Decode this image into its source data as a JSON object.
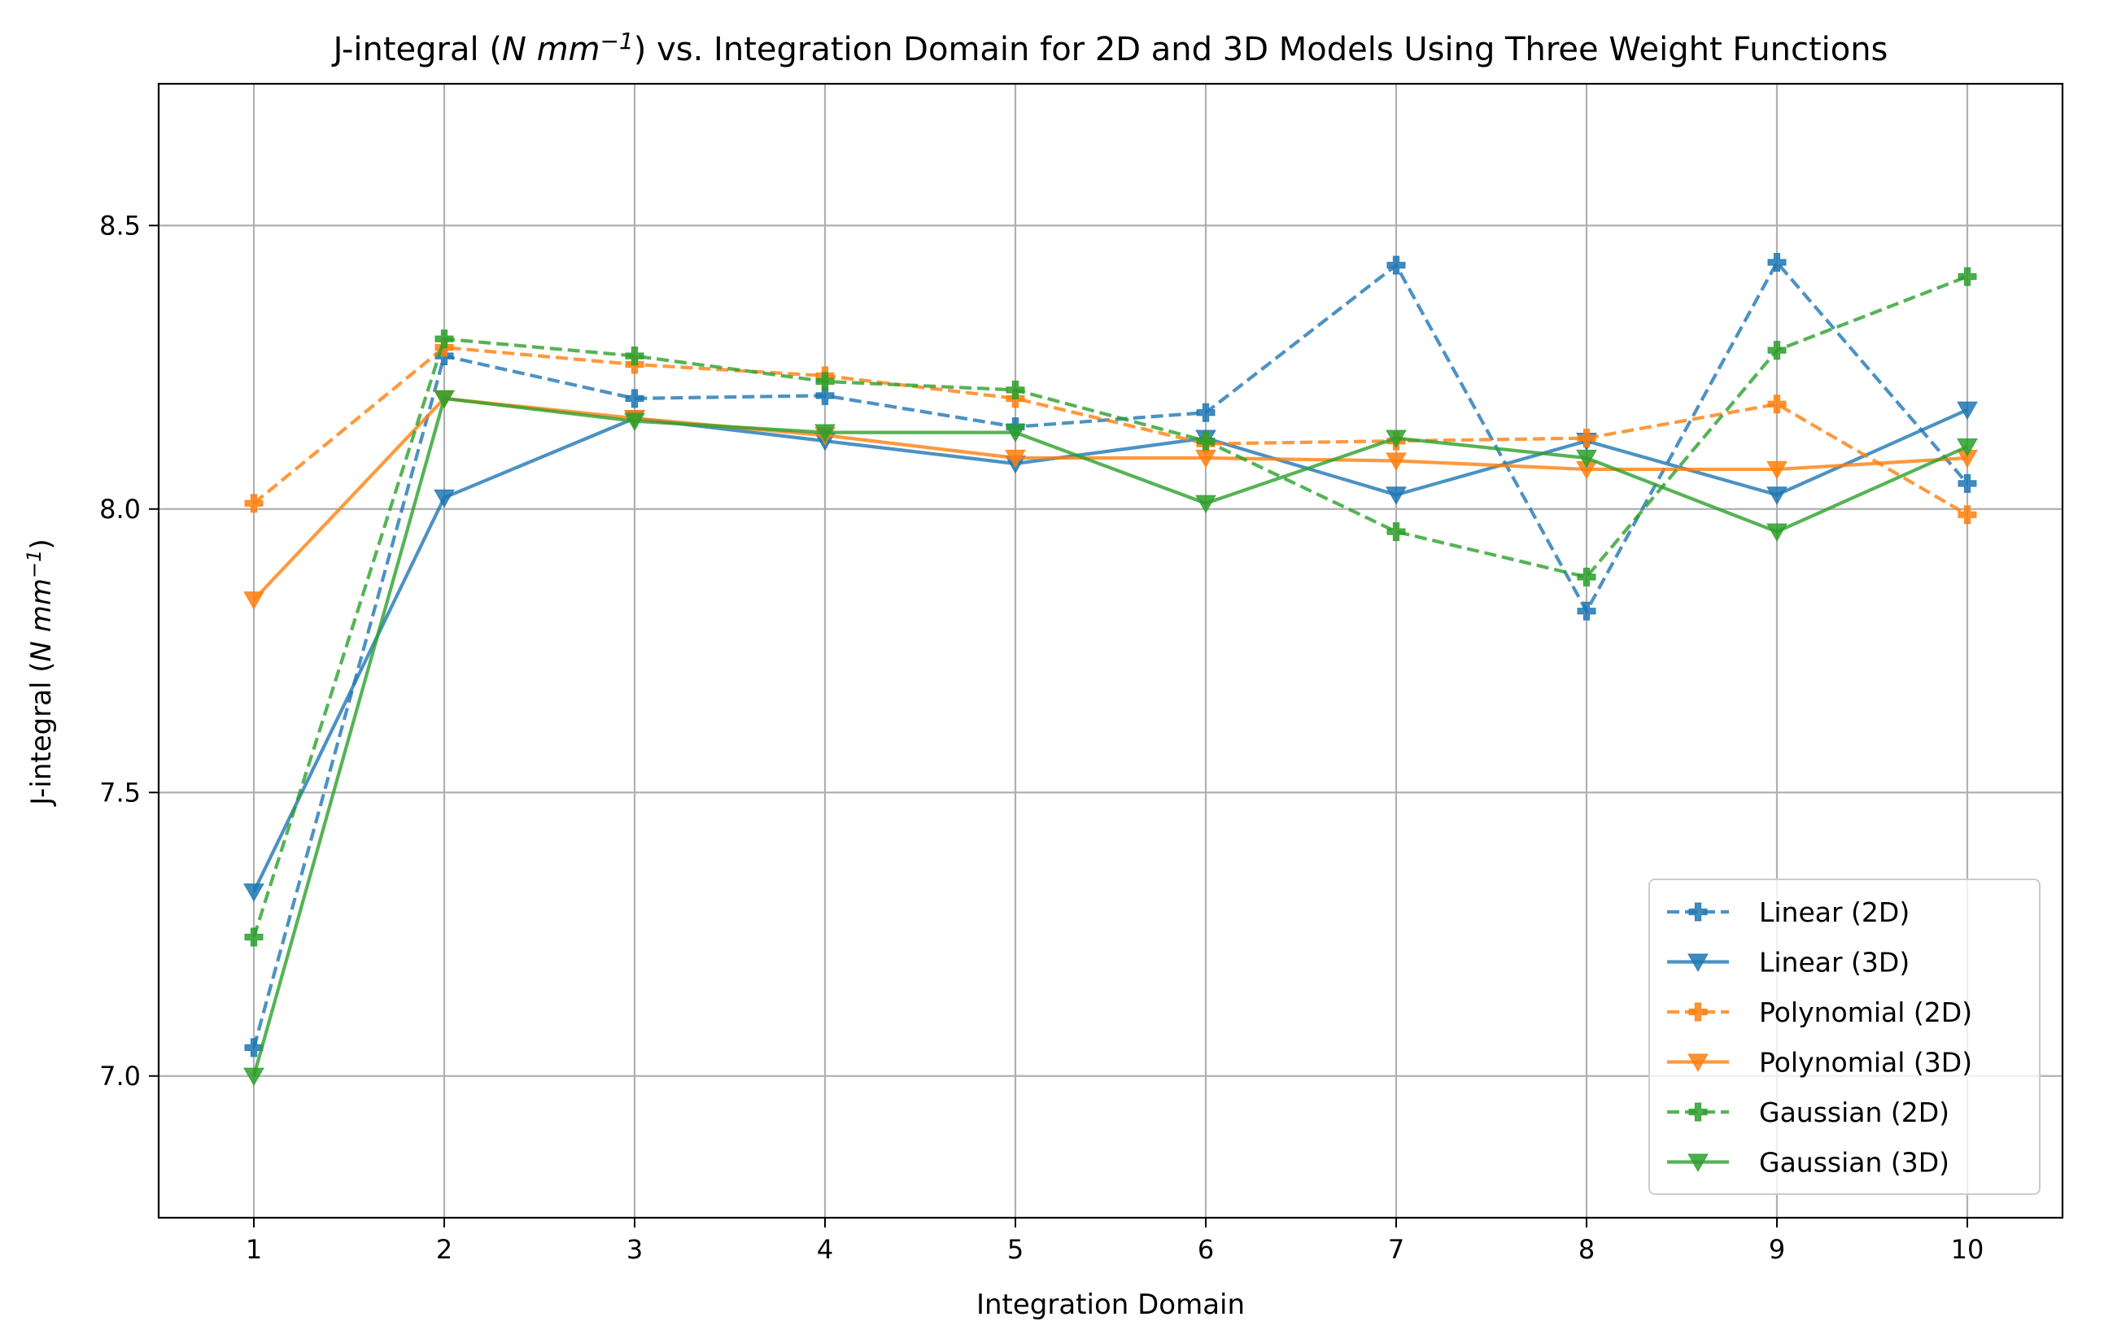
{
  "chart_data": {
    "type": "line",
    "title": {
      "prefix": "J-integral (",
      "unit_main": "N mm",
      "unit_exp": "−1",
      "suffix": ") vs. Integration Domain for 2D and 3D Models Using Three Weight Functions"
    },
    "xlabel": "Integration Domain",
    "ylabel": {
      "prefix": "J-integral (",
      "unit_main": "N mm",
      "unit_exp": "−1",
      "suffix": ")"
    },
    "x": [
      1,
      2,
      3,
      4,
      5,
      6,
      7,
      8,
      9,
      10
    ],
    "x_tick_labels": [
      "1",
      "2",
      "3",
      "4",
      "5",
      "6",
      "7",
      "8",
      "9",
      "10"
    ],
    "xlim": [
      0.5,
      10.5
    ],
    "ylim": [
      6.75,
      8.75
    ],
    "y_ticks": [
      7.0,
      7.5,
      8.0,
      8.5
    ],
    "y_tick_labels": [
      "7.0",
      "7.5",
      "8.0",
      "8.5"
    ],
    "grid": true,
    "legend_position": "lower-right",
    "series": [
      {
        "name": "Linear (2D)",
        "color": "#1f77b4",
        "dash": "dashed",
        "marker": "plus-filled",
        "values": [
          7.05,
          8.27,
          8.195,
          8.2,
          8.145,
          8.17,
          8.43,
          7.82,
          8.435,
          8.045
        ]
      },
      {
        "name": "Linear (3D)",
        "color": "#1f77b4",
        "dash": "solid",
        "marker": "triangle-down",
        "values": [
          7.325,
          8.02,
          8.16,
          8.12,
          8.08,
          8.125,
          8.025,
          8.12,
          8.025,
          8.175
        ]
      },
      {
        "name": "Polynomial (2D)",
        "color": "#ff7f0e",
        "dash": "dashed",
        "marker": "plus-filled",
        "values": [
          8.01,
          8.285,
          8.255,
          8.235,
          8.195,
          8.115,
          8.12,
          8.125,
          8.185,
          7.99
        ]
      },
      {
        "name": "Polynomial (3D)",
        "color": "#ff7f0e",
        "dash": "solid",
        "marker": "triangle-down",
        "values": [
          7.84,
          8.195,
          8.16,
          8.13,
          8.09,
          8.09,
          8.085,
          8.07,
          8.07,
          8.09
        ]
      },
      {
        "name": "Gaussian (2D)",
        "color": "#2ca02c",
        "dash": "dashed",
        "marker": "plus-filled",
        "values": [
          7.245,
          8.3,
          8.27,
          8.225,
          8.21,
          8.12,
          7.96,
          7.88,
          8.28,
          8.41
        ]
      },
      {
        "name": "Gaussian (3D)",
        "color": "#2ca02c",
        "dash": "solid",
        "marker": "triangle-down",
        "values": [
          7.0,
          8.195,
          8.155,
          8.135,
          8.135,
          8.01,
          8.125,
          8.09,
          7.96,
          8.11
        ]
      }
    ]
  }
}
